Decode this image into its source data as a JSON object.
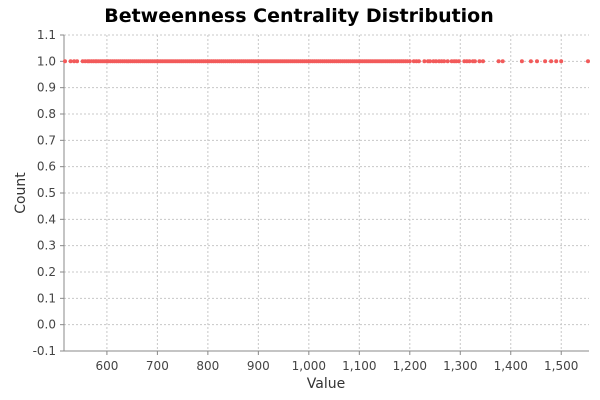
{
  "chart_data": {
    "type": "scatter",
    "title": "Betweenness Centrality Distribution",
    "xlabel": "Value",
    "ylabel": "Count",
    "xlim": [
      515,
      1555
    ],
    "ylim": [
      -0.1,
      1.1
    ],
    "x_ticks": [
      {
        "value": 600,
        "label": "600"
      },
      {
        "value": 700,
        "label": "700"
      },
      {
        "value": 800,
        "label": "800"
      },
      {
        "value": 900,
        "label": "900"
      },
      {
        "value": 1000,
        "label": "1,000"
      },
      {
        "value": 1100,
        "label": "1,100"
      },
      {
        "value": 1200,
        "label": "1,200"
      },
      {
        "value": 1300,
        "label": "1,300"
      },
      {
        "value": 1400,
        "label": "1,400"
      },
      {
        "value": 1500,
        "label": "1,500"
      }
    ],
    "y_ticks": [
      {
        "value": 1.1,
        "label": "1.1"
      },
      {
        "value": 1.0,
        "label": "1.0"
      },
      {
        "value": 0.9,
        "label": "0.9"
      },
      {
        "value": 0.8,
        "label": "0.8"
      },
      {
        "value": 0.7,
        "label": "0.7"
      },
      {
        "value": 0.6,
        "label": "0.6"
      },
      {
        "value": 0.5,
        "label": "0.5"
      },
      {
        "value": 0.4,
        "label": "0.4"
      },
      {
        "value": 0.3,
        "label": "0.3"
      },
      {
        "value": 0.2,
        "label": "0.2"
      },
      {
        "value": 0.1,
        "label": "0.1"
      },
      {
        "value": 0.0,
        "label": "0.0"
      },
      {
        "value": -0.1,
        "label": "-0.1"
      }
    ],
    "grid": true,
    "marker_color": "#f25a5a",
    "series": [
      {
        "y": 1,
        "x": [
          517,
          528,
          535,
          541,
          552,
          557,
          562,
          565,
          569,
          573,
          577,
          580,
          584,
          588,
          592,
          596,
          600,
          603,
          607,
          611,
          615,
          619,
          623,
          627,
          631,
          635,
          639,
          643,
          647,
          651,
          655,
          659,
          663,
          667,
          671,
          675,
          679,
          683,
          687,
          691,
          695,
          699,
          703,
          707,
          711,
          715,
          719,
          723,
          727,
          731,
          735,
          739,
          743,
          747,
          751,
          755,
          759,
          763,
          767,
          771,
          775,
          779,
          783,
          787,
          791,
          795,
          799,
          803,
          807,
          811,
          815,
          819,
          823,
          827,
          831,
          835,
          839,
          843,
          847,
          851,
          855,
          859,
          863,
          867,
          871,
          875,
          879,
          883,
          887,
          891,
          895,
          899,
          903,
          907,
          911,
          915,
          919,
          923,
          927,
          931,
          935,
          939,
          943,
          947,
          951,
          955,
          959,
          963,
          967,
          971,
          975,
          979,
          983,
          987,
          991,
          995,
          999,
          1003,
          1007,
          1011,
          1015,
          1019,
          1023,
          1027,
          1031,
          1035,
          1039,
          1043,
          1047,
          1051,
          1055,
          1059,
          1063,
          1067,
          1071,
          1075,
          1079,
          1083,
          1087,
          1091,
          1095,
          1099,
          1103,
          1107,
          1111,
          1115,
          1119,
          1123,
          1127,
          1131,
          1135,
          1139,
          1143,
          1147,
          1151,
          1155,
          1159,
          1163,
          1167,
          1171,
          1175,
          1179,
          1183,
          1187,
          1191,
          1195,
          1200,
          1208,
          1213,
          1218,
          1229,
          1236,
          1240,
          1247,
          1252,
          1258,
          1263,
          1268,
          1275,
          1283,
          1288,
          1292,
          1297,
          1308,
          1313,
          1318,
          1325,
          1329,
          1338,
          1345,
          1376,
          1384,
          1422,
          1440,
          1452,
          1468,
          1480,
          1490,
          1500,
          1553
        ]
      }
    ]
  }
}
